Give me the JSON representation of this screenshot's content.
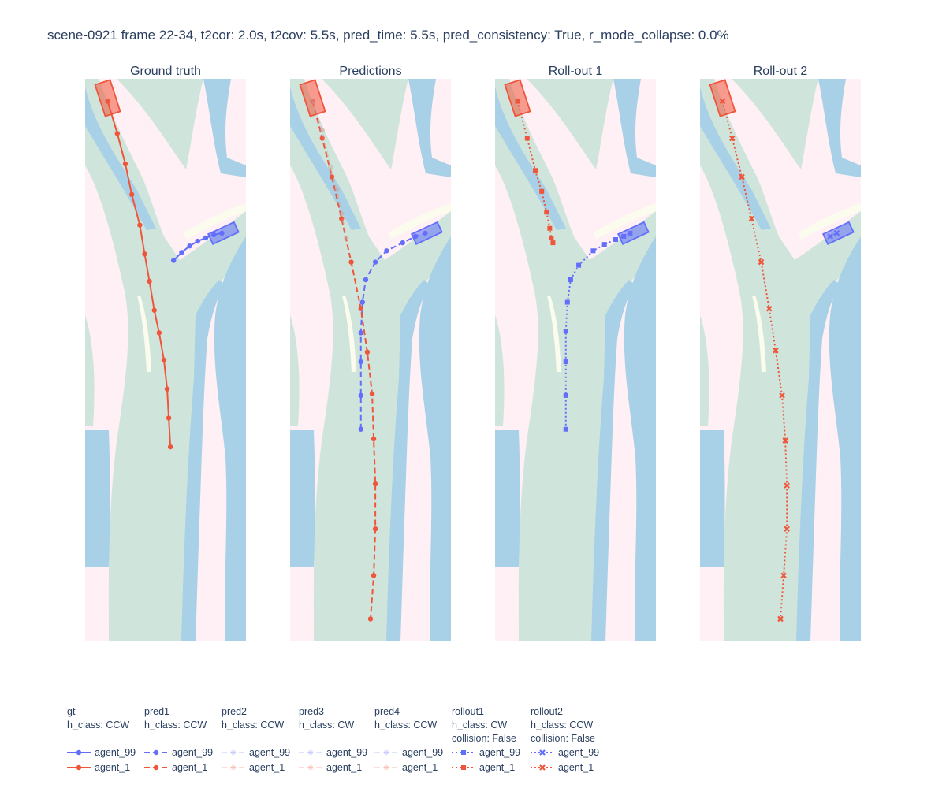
{
  "title": "scene-0921 frame 22-34, t2cor: 2.0s, t2cov: 5.5s, pred_time: 5.5s, pred_consistency: True, r_mode_collapse: 0.0%",
  "colors": {
    "offroad": "#fef0f4",
    "drivable": "#cfe5dc",
    "water_lane": "#a8d0e6",
    "cream": "#fbfbee",
    "agent_99": "#636efa",
    "agent_1": "#ef553b"
  },
  "chart_data": {
    "type": "scatter",
    "axes": {
      "xlim": [
        0,
        100
      ],
      "ylim": [
        0,
        350
      ],
      "grid": false
    },
    "subplots": [
      {
        "title": "Ground truth",
        "series": [
          {
            "agent": "agent_99",
            "style": "solid",
            "marker": "circle",
            "x": [
              55,
              60,
              65,
              70,
              75,
              80,
              85
            ],
            "y": [
              237,
              242,
              246,
              249,
              251,
              253,
              254
            ]
          },
          {
            "agent": "agent_1",
            "style": "solid",
            "marker": "circle",
            "x": [
              14,
              20,
              25,
              29,
              34,
              37,
              40,
              43,
              46,
              49,
              51,
              52,
              53
            ],
            "y": [
              336,
              316,
              297,
              278,
              259,
              241,
              224,
              206,
              192,
              175,
              157,
              139,
              121
            ]
          }
        ],
        "boxes": [
          {
            "agent": "agent_1",
            "cx": 14,
            "cy": 338,
            "heading": 62
          },
          {
            "agent": "agent_99",
            "cx": 86,
            "cy": 254,
            "heading": 25
          }
        ]
      },
      {
        "title": "Predictions",
        "series": [
          {
            "agent": "agent_99",
            "style": "dash",
            "marker": "circle",
            "x": [
              44,
              44,
              44,
              44,
              45,
              47,
              53,
              60,
              70,
              78,
              84
            ],
            "y": [
              132,
              153,
              174,
              192,
              211,
              225,
              236,
              243,
              248,
              252,
              254
            ]
          },
          {
            "agent": "agent_1",
            "style": "dash",
            "marker": "circle",
            "x": [
              14,
              20,
              26,
              32,
              38,
              44,
              48,
              51,
              52,
              53,
              53,
              52,
              50
            ],
            "y": [
              336,
              313,
              289,
              263,
              236,
              207,
              180,
              154,
              126,
              98,
              70,
              41,
              14
            ]
          },
          {
            "agent": "pred2",
            "style": "dash",
            "marker": "circle",
            "faded": true,
            "x": [
              14,
              20,
              25,
              29,
              32,
              35
            ],
            "y": [
              336,
              318,
              295,
              281,
              266,
              251
            ]
          }
        ],
        "boxes": [
          {
            "agent": "agent_1",
            "cx": 14,
            "cy": 338,
            "heading": 62
          },
          {
            "agent": "agent_99",
            "cx": 85,
            "cy": 254,
            "heading": 25
          }
        ]
      },
      {
        "title": "Roll-out 1",
        "series": [
          {
            "agent": "agent_99",
            "style": "dot",
            "marker": "square",
            "x": [
              44,
              44,
              44,
              44,
              45,
              47,
              52,
              61,
              68,
              75,
              80,
              84
            ],
            "y": [
              132,
              153,
              174,
              193,
              211,
              225,
              234,
              243,
              247,
              250,
              252,
              254
            ]
          },
          {
            "agent": "agent_1",
            "style": "dot",
            "marker": "square",
            "x": [
              14,
              20,
              25,
              29,
              32,
              34,
              35,
              36
            ],
            "y": [
              336,
              313,
              293,
              280,
              267,
              257,
              251,
              248
            ]
          }
        ],
        "boxes": [
          {
            "agent": "agent_1",
            "cx": 14,
            "cy": 338,
            "heading": 62
          },
          {
            "agent": "agent_99",
            "cx": 86,
            "cy": 254,
            "heading": 25
          }
        ]
      },
      {
        "title": "Roll-out 2",
        "series": [
          {
            "agent": "agent_99",
            "style": "dot",
            "marker": "x",
            "x": [
              81,
              85
            ],
            "y": [
              252,
              254
            ]
          },
          {
            "agent": "agent_1",
            "style": "dot",
            "marker": "x",
            "x": [
              14,
              20,
              26,
              32,
              38,
              43,
              47,
              51,
              53,
              54,
              54,
              52,
              50
            ],
            "y": [
              336,
              313,
              289,
              263,
              236,
              207,
              181,
              153,
              125,
              97,
              70,
              41,
              14
            ]
          }
        ],
        "boxes": [
          {
            "agent": "agent_1",
            "cx": 14,
            "cy": 338,
            "heading": 62
          },
          {
            "agent": "agent_99",
            "cx": 86,
            "cy": 254,
            "heading": 25
          }
        ]
      }
    ]
  },
  "legend": {
    "groups": [
      {
        "title": "gt",
        "lines": [
          "h_class: CCW"
        ],
        "style": "solid",
        "marker": "circle",
        "faded": false
      },
      {
        "title": "pred1",
        "lines": [
          "h_class: CCW"
        ],
        "style": "dash",
        "marker": "circle",
        "faded": false
      },
      {
        "title": "pred2",
        "lines": [
          "h_class: CCW"
        ],
        "style": "dash",
        "marker": "circle",
        "faded": true
      },
      {
        "title": "pred3",
        "lines": [
          "h_class: CW"
        ],
        "style": "dash",
        "marker": "circle",
        "faded": true
      },
      {
        "title": "pred4",
        "lines": [
          "h_class: CCW"
        ],
        "style": "dash",
        "marker": "circle",
        "faded": true
      },
      {
        "title": "rollout1",
        "lines": [
          "h_class: CW",
          "collision: False"
        ],
        "style": "dot",
        "marker": "square",
        "faded": false
      },
      {
        "title": "rollout2",
        "lines": [
          "h_class: CCW",
          "collision: False"
        ],
        "style": "dot",
        "marker": "x",
        "faded": false
      }
    ],
    "agents": [
      "agent_99",
      "agent_1"
    ]
  }
}
